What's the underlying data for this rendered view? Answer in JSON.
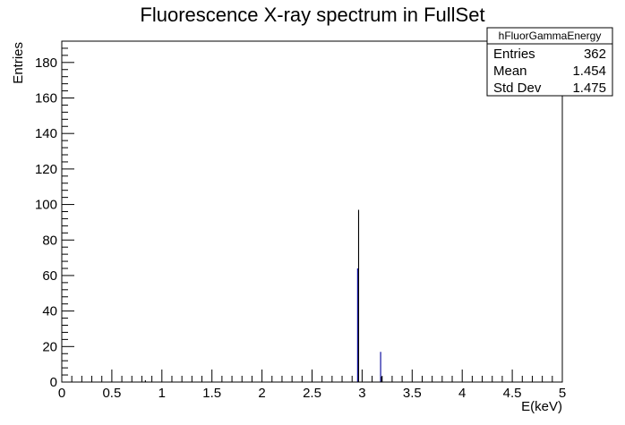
{
  "chart_data": {
    "type": "bar",
    "title": "Fluorescence X-ray spectrum in FullSet",
    "xlabel": "E(keV)",
    "ylabel": "Entries",
    "xlim": [
      0,
      5
    ],
    "ylim": [
      0,
      192
    ],
    "xticks": [
      0,
      0.5,
      1,
      1.5,
      2,
      2.5,
      3,
      3.5,
      4,
      4.5,
      5
    ],
    "xtick_labels": [
      "0",
      "0.5",
      "1",
      "1.5",
      "2",
      "2.5",
      "3",
      "3.5",
      "4",
      "4.5",
      "5"
    ],
    "yticks": [
      0,
      20,
      40,
      60,
      80,
      100,
      120,
      140,
      160,
      180
    ],
    "ytick_labels": [
      "0",
      "20",
      "40",
      "60",
      "80",
      "100",
      "120",
      "140",
      "160",
      "180"
    ],
    "grid": false,
    "bin_width": 0.01,
    "bins": [
      {
        "x": 0.83,
        "y": 1,
        "color": "#000000"
      },
      {
        "x": 2.96,
        "y": 97,
        "color": "#000000"
      },
      {
        "x": 2.95,
        "y": 64,
        "color": "#000099"
      },
      {
        "x": 3.18,
        "y": 17,
        "color": "#000099"
      },
      {
        "x": 3.19,
        "y": 3,
        "color": "#000000"
      }
    ],
    "stats": {
      "name": "hFluorGammaEnergy",
      "rows": [
        {
          "label": "Entries",
          "value": "362"
        },
        {
          "label": "Mean",
          "value": "1.454"
        },
        {
          "label": "Std Dev",
          "value": "1.475"
        }
      ],
      "placement": "top-right"
    }
  }
}
